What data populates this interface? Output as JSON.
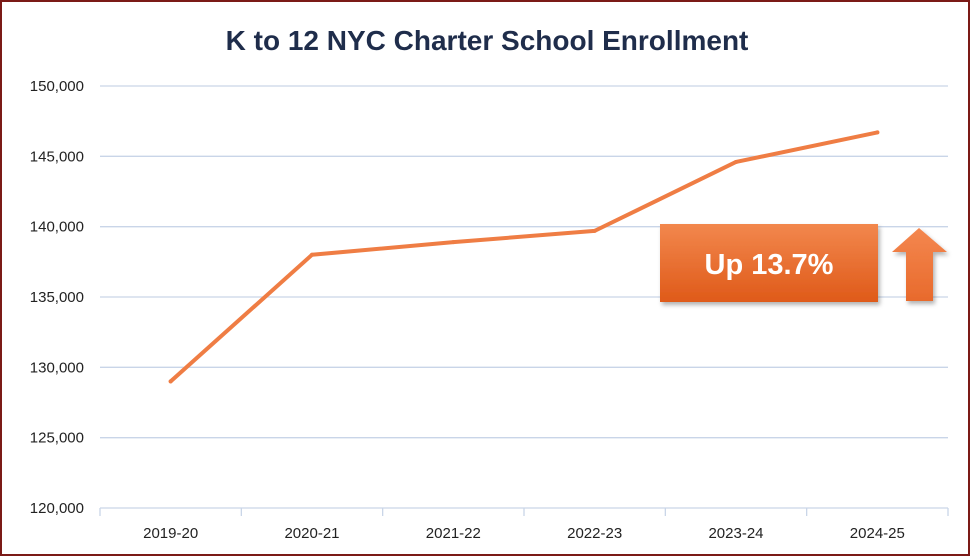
{
  "chart_data": {
    "type": "line",
    "title": "K to 12 NYC Charter School Enrollment",
    "xlabel": "",
    "ylabel": "",
    "categories": [
      "2019-20",
      "2020-21",
      "2021-22",
      "2022-23",
      "2023-24",
      "2024-25"
    ],
    "values": [
      129000,
      138000,
      138900,
      139700,
      144600,
      146700
    ],
    "ylim": [
      120000,
      150000
    ],
    "yticks": [
      120000,
      125000,
      130000,
      135000,
      140000,
      145000,
      150000
    ],
    "ytick_labels": [
      "120,000",
      "125,000",
      "130,000",
      "135,000",
      "140,000",
      "145,000",
      "150,000"
    ],
    "grid": true,
    "legend": "none",
    "line_color": "#ef7d44",
    "annotation": {
      "text": "Up 13.7%",
      "box_color": "#e8611f",
      "arrow": "up-arrow-icon",
      "arrow_color": "#ef7d44"
    }
  }
}
